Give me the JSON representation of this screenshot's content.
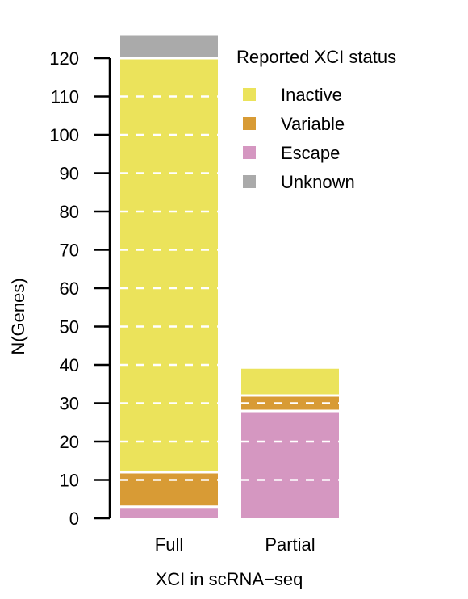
{
  "chart_data": {
    "type": "bar",
    "stacked": true,
    "categories": [
      "Full",
      "Partial"
    ],
    "series": [
      {
        "name": "Escape",
        "values": [
          3,
          28
        ],
        "color": "#d597c1"
      },
      {
        "name": "Variable",
        "values": [
          9,
          4
        ],
        "color": "#d89b35"
      },
      {
        "name": "Inactive",
        "values": [
          108,
          7
        ],
        "color": "#ebe35b"
      },
      {
        "name": "Unknown",
        "values": [
          6,
          0
        ],
        "color": "#aaaaaa"
      }
    ],
    "title": "",
    "xlabel": "XCI in scRNA−seq",
    "ylabel": "N(Genes)",
    "ylim": [
      0,
      120
    ],
    "yticks": [
      0,
      10,
      20,
      30,
      40,
      50,
      60,
      70,
      80,
      90,
      100,
      110,
      120
    ],
    "grid": "dashed white horizontal lines over bars",
    "legend": {
      "title": "Reported XCI status",
      "placement": "top-right",
      "entries": [
        "Inactive",
        "Variable",
        "Escape",
        "Unknown"
      ]
    }
  }
}
